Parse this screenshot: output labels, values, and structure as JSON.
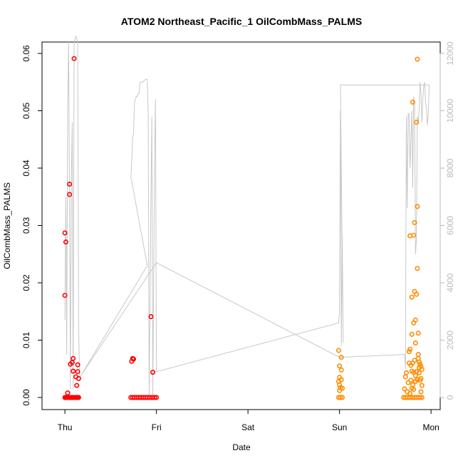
{
  "chart_data": {
    "type": "scatter",
    "title": "ATOM2 Northeast_Pacific_1 OilCombMass_PALMS",
    "xlabel": "Date",
    "ylabel": "OilCombMass_PALMS",
    "x_ticks": [
      "Thu",
      "Fri",
      "Sat",
      "Sun",
      "Mon"
    ],
    "xlim_days": [
      -0.25,
      4.1
    ],
    "y_ticks": [
      "0.00",
      "0.01",
      "0.02",
      "0.03",
      "0.04",
      "0.05",
      "0.06"
    ],
    "ylim": [
      0,
      0.06
    ],
    "y2_ticks": [
      "0",
      "2000",
      "4000",
      "6000",
      "8000",
      "10000",
      "12000"
    ],
    "y2lim": [
      0,
      12000
    ],
    "grid": false,
    "colors": {
      "series_red": "#ff0000",
      "series_orange": "#ff8c00",
      "altitude_line": "#c8c8c8",
      "axis": "#000000",
      "axis2": "#bbbbbb"
    },
    "series": [
      {
        "color": "#ff0000",
        "points": [
          [
            0.0,
            0.0178
          ],
          [
            0.0,
            0.0287
          ],
          [
            0.01,
            0.0271
          ],
          [
            0.03,
            0.0008
          ],
          [
            0.05,
            0.0372
          ],
          [
            0.05,
            0.0354
          ],
          [
            0.06,
            0.0058
          ],
          [
            0.08,
            0.0061
          ],
          [
            0.09,
            0.0068
          ],
          [
            0.1,
            0.0591
          ],
          [
            0.09,
            0.0046
          ],
          [
            0.12,
            0.0036
          ],
          [
            0.13,
            0.0021
          ],
          [
            0.14,
            0.0057
          ],
          [
            0.14,
            0.0045
          ],
          [
            0.15,
            0.0033
          ],
          [
            0.0,
            0
          ],
          [
            0.01,
            0
          ],
          [
            0.02,
            0
          ],
          [
            0.03,
            0
          ],
          [
            0.04,
            0
          ],
          [
            0.05,
            0
          ],
          [
            0.06,
            0
          ],
          [
            0.07,
            0
          ],
          [
            0.08,
            0
          ],
          [
            0.09,
            0
          ],
          [
            0.1,
            0
          ],
          [
            0.11,
            0
          ],
          [
            0.12,
            0
          ],
          [
            0.13,
            0
          ],
          [
            0.14,
            0
          ],
          [
            0.15,
            0
          ],
          [
            0.73,
            0.0063
          ],
          [
            0.74,
            0.0068
          ],
          [
            0.75,
            0.0067
          ],
          [
            0.94,
            0.0141
          ],
          [
            0.96,
            0.0044
          ],
          [
            0.72,
            0
          ],
          [
            0.74,
            0
          ],
          [
            0.76,
            0
          ],
          [
            0.78,
            0
          ],
          [
            0.8,
            0
          ],
          [
            0.82,
            0
          ],
          [
            0.84,
            0
          ],
          [
            0.86,
            0
          ],
          [
            0.88,
            0
          ],
          [
            0.9,
            0
          ],
          [
            0.92,
            0
          ],
          [
            0.94,
            0
          ],
          [
            0.96,
            0
          ],
          [
            0.98,
            0
          ],
          [
            1.0,
            0
          ]
        ]
      },
      {
        "color": "#ff8c00",
        "points": [
          [
            2.99,
            0.0082
          ],
          [
            3.0,
            0.0055
          ],
          [
            3.0,
            0.0035
          ],
          [
            2.99,
            0.0028
          ],
          [
            3.0,
            0.0022
          ],
          [
            3.01,
            0.0017
          ],
          [
            3.0,
            0.0012
          ],
          [
            3.02,
            0.0048
          ],
          [
            3.02,
            0.007
          ],
          [
            3.02,
            0.0031
          ],
          [
            3.03,
            0.0016
          ],
          [
            2.99,
            0
          ],
          [
            3.01,
            0
          ],
          [
            3.03,
            0
          ],
          [
            3.71,
            0.0015
          ],
          [
            3.72,
            0.0036
          ],
          [
            3.73,
            0.0043
          ],
          [
            3.75,
            0.0026
          ],
          [
            3.76,
            0.006
          ],
          [
            3.76,
            0.008
          ],
          [
            3.77,
            0.0084
          ],
          [
            3.77,
            0.0282
          ],
          [
            3.78,
            0.003
          ],
          [
            3.79,
            0.011
          ],
          [
            3.79,
            0.0175
          ],
          [
            3.8,
            0.0022
          ],
          [
            3.8,
            0.0515
          ],
          [
            3.81,
            0.013
          ],
          [
            3.81,
            0.0283
          ],
          [
            3.82,
            0.0305
          ],
          [
            3.82,
            0.0185
          ],
          [
            3.83,
            0.0135
          ],
          [
            3.83,
            0.0095
          ],
          [
            3.84,
            0.018
          ],
          [
            3.84,
            0.048
          ],
          [
            3.85,
            0.059
          ],
          [
            3.85,
            0.0333
          ],
          [
            3.85,
            0.0225
          ],
          [
            3.86,
            0.0112
          ],
          [
            3.86,
            0.0075
          ],
          [
            3.87,
            0.0052
          ],
          [
            3.87,
            0.0043
          ],
          [
            3.88,
            0.0058
          ],
          [
            3.89,
            0.0054
          ],
          [
            3.89,
            0.0033
          ],
          [
            3.9,
            0.0021
          ],
          [
            3.9,
            0.0049
          ],
          [
            3.82,
            0.0065
          ],
          [
            3.8,
            0.006
          ],
          [
            3.78,
            0.0056
          ],
          [
            3.79,
            0.0046
          ],
          [
            3.81,
            0.0044
          ],
          [
            3.83,
            0.0038
          ],
          [
            3.84,
            0.0045
          ],
          [
            3.86,
            0.0068
          ],
          [
            3.87,
            0.0062
          ],
          [
            3.74,
            0.001
          ],
          [
            3.77,
            0.0007
          ],
          [
            3.79,
            0.0016
          ],
          [
            3.81,
            0.0014
          ],
          [
            3.83,
            0.0028
          ],
          [
            3.85,
            0.0031
          ],
          [
            3.88,
            0.003
          ],
          [
            3.89,
            0.001
          ],
          [
            3.7,
            0
          ],
          [
            3.72,
            0
          ],
          [
            3.74,
            0
          ],
          [
            3.76,
            0
          ],
          [
            3.78,
            0
          ],
          [
            3.8,
            0
          ],
          [
            3.82,
            0
          ],
          [
            3.84,
            0
          ],
          [
            3.86,
            0
          ],
          [
            3.88,
            0
          ],
          [
            3.9,
            0
          ]
        ]
      }
    ],
    "secondary_line": [
      [
        0.0,
        2700
      ],
      [
        0.01,
        7000
      ],
      [
        0.02,
        1500
      ],
      [
        0.03,
        10000
      ],
      [
        0.04,
        12400
      ],
      [
        0.05,
        7000
      ],
      [
        0.06,
        300
      ],
      [
        0.07,
        7500
      ],
      [
        0.08,
        9600
      ],
      [
        0.09,
        300
      ],
      [
        0.1,
        12300
      ],
      [
        0.11,
        12500
      ],
      [
        0.12,
        12600
      ],
      [
        0.13,
        12500
      ],
      [
        0.14,
        12400
      ],
      [
        0.15,
        2500
      ],
      [
        0.16,
        700
      ],
      [
        0.17,
        740
      ],
      [
        0.9,
        4600
      ],
      [
        0.72,
        7700
      ],
      [
        0.73,
        8200
      ],
      [
        0.74,
        9100
      ],
      [
        0.75,
        9200
      ],
      [
        0.76,
        10300
      ],
      [
        0.77,
        10400
      ],
      [
        0.78,
        10500
      ],
      [
        0.79,
        10500
      ],
      [
        0.8,
        10600
      ],
      [
        0.81,
        10600
      ],
      [
        0.82,
        11000
      ],
      [
        0.83,
        11000
      ],
      [
        0.84,
        11000
      ],
      [
        0.85,
        11000
      ],
      [
        0.86,
        11050
      ],
      [
        0.87,
        11050
      ],
      [
        0.88,
        11100
      ],
      [
        0.89,
        11100
      ],
      [
        0.9,
        11100
      ],
      [
        0.91,
        9800
      ],
      [
        0.92,
        0
      ],
      [
        0.94,
        7000
      ],
      [
        0.95,
        9800
      ],
      [
        0.96,
        100
      ],
      [
        0.98,
        8500
      ],
      [
        0.99,
        10400
      ],
      [
        1.0,
        900
      ],
      [
        2.99,
        2600
      ],
      [
        3.0,
        3000
      ],
      [
        3.01,
        10000
      ],
      [
        3.02,
        1800
      ],
      [
        3.03,
        5600
      ],
      [
        3.04,
        1900
      ],
      [
        3.03,
        5000
      ],
      [
        3.01,
        10900
      ],
      [
        3.98,
        10900
      ],
      [
        3.97,
        9900
      ],
      [
        3.96,
        9500
      ],
      [
        3.95,
        10100
      ],
      [
        3.94,
        10300
      ],
      [
        3.93,
        11000
      ],
      [
        3.92,
        10900
      ],
      [
        3.91,
        10400
      ],
      [
        3.9,
        9600
      ],
      [
        3.89,
        10600
      ],
      [
        3.88,
        11000
      ],
      [
        3.87,
        10000
      ],
      [
        3.86,
        9600
      ],
      [
        3.85,
        9800
      ],
      [
        3.84,
        5500
      ],
      [
        3.83,
        5000
      ],
      [
        3.82,
        10200
      ],
      [
        3.81,
        10500
      ],
      [
        3.8,
        7300
      ],
      [
        3.79,
        10000
      ],
      [
        3.78,
        9000
      ],
      [
        3.77,
        8000
      ],
      [
        3.76,
        9900
      ],
      [
        3.75,
        9900
      ],
      [
        3.74,
        6600
      ],
      [
        3.73,
        9800
      ],
      [
        3.72,
        1000
      ],
      [
        3.71,
        1500
      ],
      [
        3.7,
        1500
      ],
      [
        3.0,
        1400
      ],
      [
        1.0,
        4700
      ],
      [
        0.17,
        740
      ]
    ]
  }
}
